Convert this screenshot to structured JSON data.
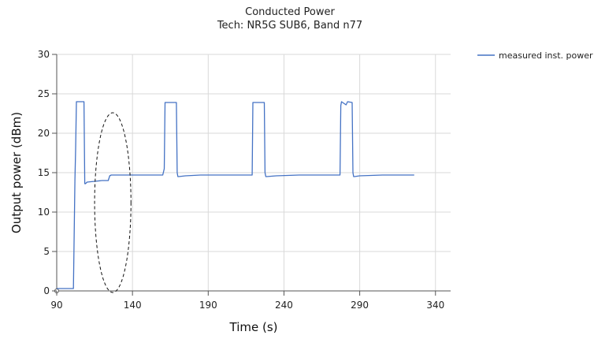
{
  "chart_data": {
    "type": "line",
    "title": "Conducted Power",
    "subtitle": "Tech: NR5G SUB6, Band n77",
    "xlabel": "Time (s)",
    "ylabel": "Output power (dBm)",
    "xlim": [
      90,
      350
    ],
    "ylim": [
      0,
      30
    ],
    "xticks": [
      90,
      140,
      190,
      240,
      290,
      340
    ],
    "yticks": [
      0,
      5,
      10,
      15,
      20,
      25,
      30
    ],
    "grid": true,
    "legend_position": "top-right",
    "colors": {
      "series": "#4472c4",
      "grid": "#d9d9d9",
      "axis": "#555555",
      "annotation": "#111111"
    },
    "series": [
      {
        "name": "measured inst. power",
        "x": [
          90,
          101,
          102,
          102.5,
          103,
          103.5,
          108,
          108.5,
          109,
          110,
          115,
          120,
          124,
          125,
          126,
          127,
          130,
          140,
          150,
          160,
          161,
          161.5,
          162,
          169,
          169.5,
          170,
          170.5,
          175,
          185,
          200,
          210,
          219,
          219.5,
          220,
          227,
          227.5,
          228,
          228.5,
          235,
          250,
          265,
          277,
          277.5,
          278,
          281,
          282,
          285,
          285.5,
          286,
          286.5,
          290,
          305,
          320,
          326
        ],
        "y": [
          0.3,
          0.3,
          14,
          18,
          24,
          24,
          24,
          13.6,
          13.6,
          13.8,
          13.9,
          14,
          14,
          14.6,
          14.7,
          14.7,
          14.7,
          14.7,
          14.7,
          14.7,
          15.5,
          23.9,
          23.9,
          23.9,
          15,
          14.5,
          14.5,
          14.6,
          14.7,
          14.7,
          14.7,
          14.7,
          23.9,
          23.9,
          23.9,
          15,
          14.5,
          14.5,
          14.6,
          14.7,
          14.7,
          14.7,
          23.5,
          24,
          23.6,
          24,
          23.9,
          15,
          14.5,
          14.5,
          14.6,
          14.7,
          14.7,
          14.7
        ]
      }
    ],
    "annotations": [
      {
        "type": "ellipse",
        "style": "dashed",
        "center": [
          127,
          11.2
        ],
        "radius_x": 12,
        "radius_y": 11.4
      }
    ]
  }
}
